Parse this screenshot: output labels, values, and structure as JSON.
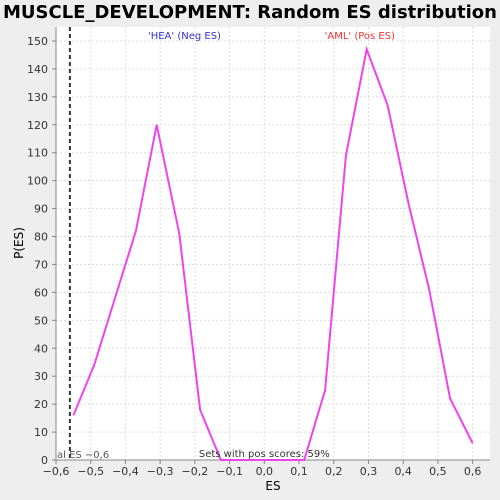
{
  "chart_data": {
    "type": "line",
    "title": "MUSCLE_DEVELOPMENT: Random ES distribution",
    "xlabel": "ES",
    "ylabel": "P(ES)",
    "xlim": [
      -0.6,
      0.65
    ],
    "ylim": [
      0,
      155
    ],
    "x_ticks": [
      -0.6,
      -0.5,
      -0.4,
      -0.3,
      -0.2,
      -0.1,
      0.0,
      0.1,
      0.2,
      0.3,
      0.4,
      0.5,
      0.6
    ],
    "x_tick_labels": [
      "−0,6",
      "−0,5",
      "−0,4",
      "−0,3",
      "−0,2",
      "−0,1",
      "0,0",
      "0,1",
      "0,2",
      "0,3",
      "0,4",
      "0,5",
      "0,6"
    ],
    "y_ticks": [
      0,
      10,
      20,
      30,
      40,
      50,
      60,
      70,
      80,
      90,
      100,
      110,
      120,
      130,
      140,
      150
    ],
    "grid": true,
    "series": [
      {
        "color": "#ee44ee",
        "x": [
          -0.55,
          -0.49,
          -0.43,
          -0.37,
          -0.31,
          -0.245,
          -0.185,
          -0.125,
          -0.065,
          0.0,
          0.06,
          0.115,
          0.175,
          0.235,
          0.295,
          0.355,
          0.415,
          0.475,
          0.535,
          0.6
        ],
        "y": [
          16,
          34,
          58,
          82,
          120,
          81,
          18,
          0,
          0,
          0,
          0,
          0,
          25,
          109,
          147,
          127,
          92,
          61,
          22,
          6
        ]
      }
    ],
    "vline": {
      "x": -0.56,
      "style": "dashed",
      "color": "#333333"
    },
    "annotations": {
      "neg_label": "'HEA' (Neg ES)",
      "neg_color": "#3333cc",
      "pos_label": "'AML' (Pos ES)",
      "pos_color": "#ee3333",
      "actual_es": "al ES −0,6",
      "pos_scores": "Sets with pos scores: 59%"
    }
  }
}
